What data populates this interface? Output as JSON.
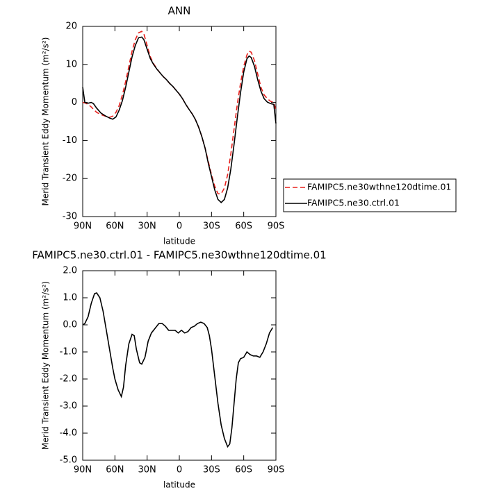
{
  "chart_data": [
    {
      "type": "line",
      "title": "ANN",
      "xlabel": "latitude",
      "ylabel": "Merid Transient Eddy Momentum (m²/s²)",
      "x": [
        90,
        88,
        85,
        82,
        80,
        77,
        73,
        69,
        65,
        62,
        59,
        56,
        53,
        50,
        47,
        44,
        41,
        38,
        35,
        33,
        30,
        27,
        24,
        21,
        18,
        15,
        12,
        9,
        6,
        3,
        0,
        -3,
        -6,
        -9,
        -12,
        -15,
        -18,
        -21,
        -24,
        -27,
        -30,
        -33,
        -36,
        -39,
        -42,
        -45,
        -48,
        -51,
        -54,
        -57,
        -60,
        -63,
        -65,
        -67,
        -70,
        -73,
        -76,
        -79,
        -82,
        -85,
        -88,
        -90
      ],
      "series": [
        {
          "name": "FAMIPC5.ne30wthne120dtime.01",
          "color": "#e8201c",
          "dash": true,
          "values": [
            0,
            -0.1,
            -0.5,
            -1.2,
            -1.8,
            -2.6,
            -3.2,
            -3.6,
            -3.9,
            -3.6,
            -2.6,
            -0.8,
            2,
            5.5,
            9.5,
            13.5,
            16.5,
            18.3,
            18.7,
            18,
            15,
            12,
            10.2,
            8.9,
            7.8,
            6.8,
            6,
            5,
            4.2,
            3.2,
            2.2,
            1,
            -0.5,
            -1.8,
            -3,
            -4.5,
            -6.5,
            -9,
            -12,
            -15.5,
            -19,
            -22,
            -24,
            -24,
            -22.5,
            -19,
            -13.5,
            -7,
            -0.5,
            5,
            9.5,
            12.5,
            13.5,
            13.2,
            11,
            7.5,
            4,
            2,
            1,
            0.3,
            0,
            -2
          ]
        },
        {
          "name": "FAMIPC5.ne30.ctrl.01",
          "color": "#000000",
          "dash": false,
          "values": [
            4,
            0,
            -0.2,
            0,
            -0.3,
            -1.5,
            -2.8,
            -3.5,
            -4.1,
            -4.4,
            -3.8,
            -2,
            0.5,
            4,
            8,
            12,
            15,
            17,
            17.2,
            16.5,
            14,
            11.5,
            10,
            8.8,
            7.8,
            6.8,
            6,
            5,
            4.2,
            3.2,
            2.2,
            1,
            -0.5,
            -1.8,
            -3,
            -4.5,
            -6.5,
            -9,
            -12,
            -16,
            -19.5,
            -23,
            -25.5,
            -26.3,
            -25.5,
            -22.5,
            -17.5,
            -11,
            -4,
            2.5,
            8,
            11.5,
            12.2,
            11.8,
            9.5,
            6,
            3,
            1,
            0.1,
            -0.3,
            -0.5,
            -5.5
          ]
        }
      ],
      "xlim": [
        90,
        -90
      ],
      "xticks": [
        {
          "value": 90,
          "label": "90N"
        },
        {
          "value": 60,
          "label": "60N"
        },
        {
          "value": 30,
          "label": "30N"
        },
        0,
        {
          "value": -30,
          "label": "30S"
        },
        {
          "value": -60,
          "label": "60S"
        },
        {
          "value": -90,
          "label": "90S"
        }
      ],
      "ylim": [
        -30,
        20
      ],
      "yticks": [
        20,
        10,
        0,
        -10,
        -20,
        -30
      ],
      "legend": "right"
    },
    {
      "type": "line",
      "title": "FAMIPC5.ne30.ctrl.01 - FAMIPC5.ne30wthne120dtime.01",
      "xlabel": "latitude",
      "ylabel": "Merid Transient Eddy Momentum (m²/s²)",
      "x": [
        90,
        88,
        85,
        82,
        79,
        77,
        74,
        71,
        68,
        65,
        62,
        60,
        57,
        54,
        52,
        50,
        47,
        44,
        42,
        40,
        37,
        35,
        32,
        29,
        26,
        22,
        19,
        16,
        13,
        10,
        7,
        4,
        1,
        -2,
        -5,
        -8,
        -11,
        -14,
        -17,
        -20,
        -23,
        -26,
        -28,
        -30,
        -33,
        -36,
        -39,
        -42,
        -45,
        -47,
        -49,
        -51,
        -53,
        -55,
        -57,
        -60,
        -63,
        -66,
        -69,
        -72,
        -75,
        -78,
        -81,
        -84,
        -87
      ],
      "series": [
        {
          "color": "#000000",
          "dash": false,
          "values": [
            0,
            0.05,
            0.3,
            0.8,
            1.15,
            1.18,
            1.0,
            0.5,
            -0.2,
            -0.9,
            -1.6,
            -2.0,
            -2.4,
            -2.65,
            -2.3,
            -1.5,
            -0.7,
            -0.35,
            -0.4,
            -0.9,
            -1.4,
            -1.45,
            -1.2,
            -0.6,
            -0.3,
            -0.1,
            0.05,
            0.05,
            -0.05,
            -0.2,
            -0.2,
            -0.2,
            -0.3,
            -0.2,
            -0.3,
            -0.25,
            -0.1,
            -0.05,
            0.05,
            0.1,
            0.05,
            -0.1,
            -0.4,
            -0.9,
            -1.9,
            -2.9,
            -3.7,
            -4.2,
            -4.5,
            -4.4,
            -3.8,
            -2.9,
            -2.0,
            -1.4,
            -1.25,
            -1.2,
            -1.0,
            -1.1,
            -1.15,
            -1.15,
            -1.2,
            -1.0,
            -0.7,
            -0.3,
            -0.1
          ]
        }
      ],
      "xlim": [
        90,
        -90
      ],
      "xticks": [
        {
          "value": 90,
          "label": "90N"
        },
        {
          "value": 60,
          "label": "60N"
        },
        {
          "value": 30,
          "label": "30N"
        },
        0,
        {
          "value": -30,
          "label": "30S"
        },
        {
          "value": -60,
          "label": "60S"
        },
        {
          "value": -90,
          "label": "90S"
        }
      ],
      "ylim": [
        -5,
        2
      ],
      "yticks": [
        {
          "value": 2,
          "label": "2.0"
        },
        {
          "value": 1,
          "label": "1.0"
        },
        {
          "value": 0,
          "label": "0.0"
        },
        {
          "value": -1,
          "label": "-1.0"
        },
        {
          "value": -2,
          "label": "-2.0"
        },
        {
          "value": -3,
          "label": "-3.0"
        },
        {
          "value": -4,
          "label": "-4.0"
        },
        {
          "value": -5,
          "label": "-5.0"
        }
      ]
    }
  ]
}
